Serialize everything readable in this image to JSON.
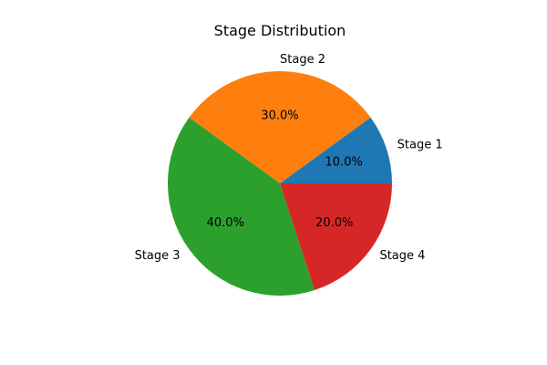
{
  "chart_data": {
    "type": "pie",
    "title": "Stage Distribution",
    "start_angle_deg": 0,
    "direction": "counterclockwise",
    "autopct_format": "{v}%",
    "slices": [
      {
        "label": "Stage 1",
        "value": 10.0,
        "pct_text": "10.0%",
        "color": "#1f77b4"
      },
      {
        "label": "Stage 2",
        "value": 30.0,
        "pct_text": "30.0%",
        "color": "#ff7f0e"
      },
      {
        "label": "Stage 3",
        "value": 40.0,
        "pct_text": "40.0%",
        "color": "#2ca02c"
      },
      {
        "label": "Stage 4",
        "value": 20.0,
        "pct_text": "20.0%",
        "color": "#d62728"
      }
    ]
  }
}
